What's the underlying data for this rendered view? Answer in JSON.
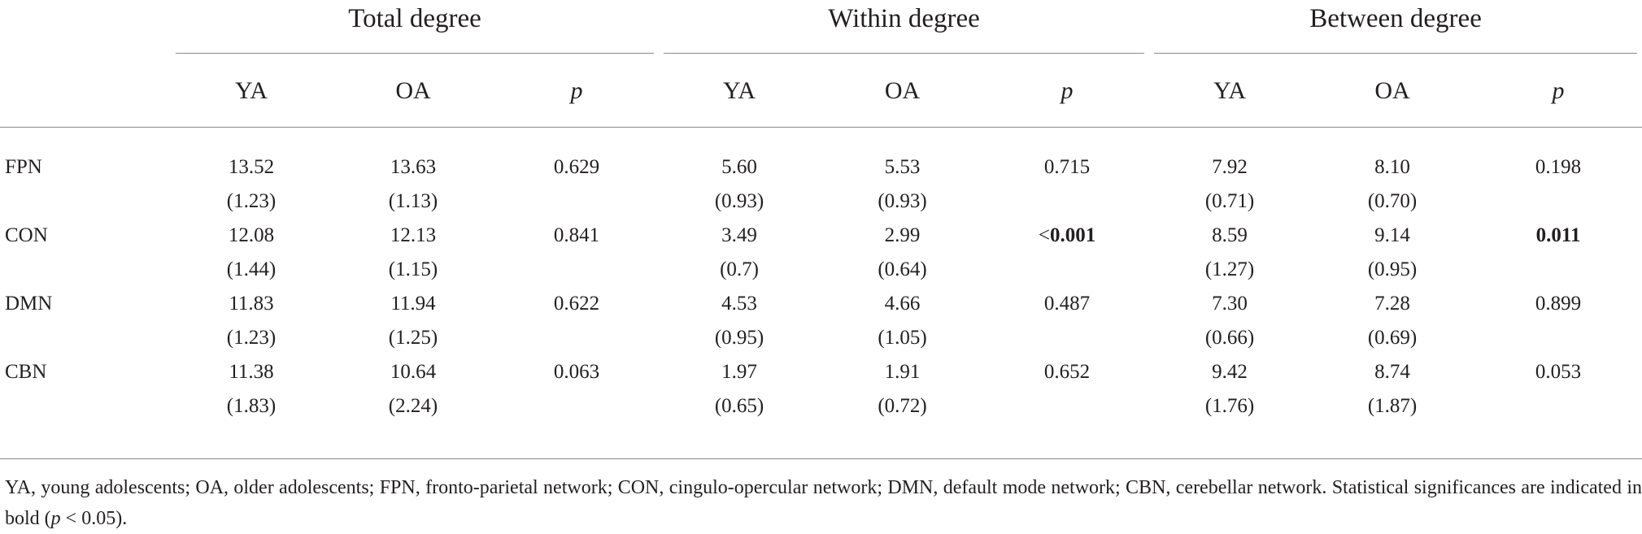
{
  "groups": {
    "total": "Total degree",
    "within": "Within degree",
    "between": "Between degree"
  },
  "subheaders": {
    "ya": "YA",
    "oa": "OA",
    "p": "p"
  },
  "rows": [
    {
      "label": "FPN",
      "total": {
        "ya_mean": "13.52",
        "ya_sd": "(1.23)",
        "oa_mean": "13.63",
        "oa_sd": "(1.13)",
        "p": "0.629"
      },
      "within": {
        "ya_mean": "5.60",
        "ya_sd": "(0.93)",
        "oa_mean": "5.53",
        "oa_sd": "(0.93)",
        "p": "0.715"
      },
      "between": {
        "ya_mean": "7.92",
        "ya_sd": "(0.71)",
        "oa_mean": "8.10",
        "oa_sd": "(0.70)",
        "p": "0.198"
      }
    },
    {
      "label": "CON",
      "total": {
        "ya_mean": "12.08",
        "ya_sd": "(1.44)",
        "oa_mean": "12.13",
        "oa_sd": "(1.15)",
        "p": "0.841"
      },
      "within": {
        "ya_mean": "3.49",
        "ya_sd": "(0.7)",
        "oa_mean": "2.99",
        "oa_sd": "(0.64)",
        "p_prefix": "<",
        "p": "0.001"
      },
      "between": {
        "ya_mean": "8.59",
        "ya_sd": "(1.27)",
        "oa_mean": "9.14",
        "oa_sd": "(0.95)",
        "p": "0.011"
      }
    },
    {
      "label": "DMN",
      "total": {
        "ya_mean": "11.83",
        "ya_sd": "(1.23)",
        "oa_mean": "11.94",
        "oa_sd": "(1.25)",
        "p": "0.622"
      },
      "within": {
        "ya_mean": "4.53",
        "ya_sd": "(0.95)",
        "oa_mean": "4.66",
        "oa_sd": "(1.05)",
        "p": "0.487"
      },
      "between": {
        "ya_mean": "7.30",
        "ya_sd": "(0.66)",
        "oa_mean": "7.28",
        "oa_sd": "(0.69)",
        "p": "0.899"
      }
    },
    {
      "label": "CBN",
      "total": {
        "ya_mean": "11.38",
        "ya_sd": "(1.83)",
        "oa_mean": "10.64",
        "oa_sd": "(2.24)",
        "p": "0.063"
      },
      "within": {
        "ya_mean": "1.97",
        "ya_sd": "(0.65)",
        "oa_mean": "1.91",
        "oa_sd": "(0.72)",
        "p": "0.652"
      },
      "between": {
        "ya_mean": "9.42",
        "ya_sd": "(1.76)",
        "oa_mean": "8.74",
        "oa_sd": "(1.87)",
        "p": "0.053"
      }
    }
  ],
  "footnote": {
    "line": "YA, young adolescents; OA, older adolescents; FPN, fronto-parietal network; CON, cingulo-opercular network; DMN, default mode network; CBN, cerebellar network. Statistical significances are indicated in bold (",
    "p_symbol": "p",
    "tail": " < 0.05)."
  }
}
